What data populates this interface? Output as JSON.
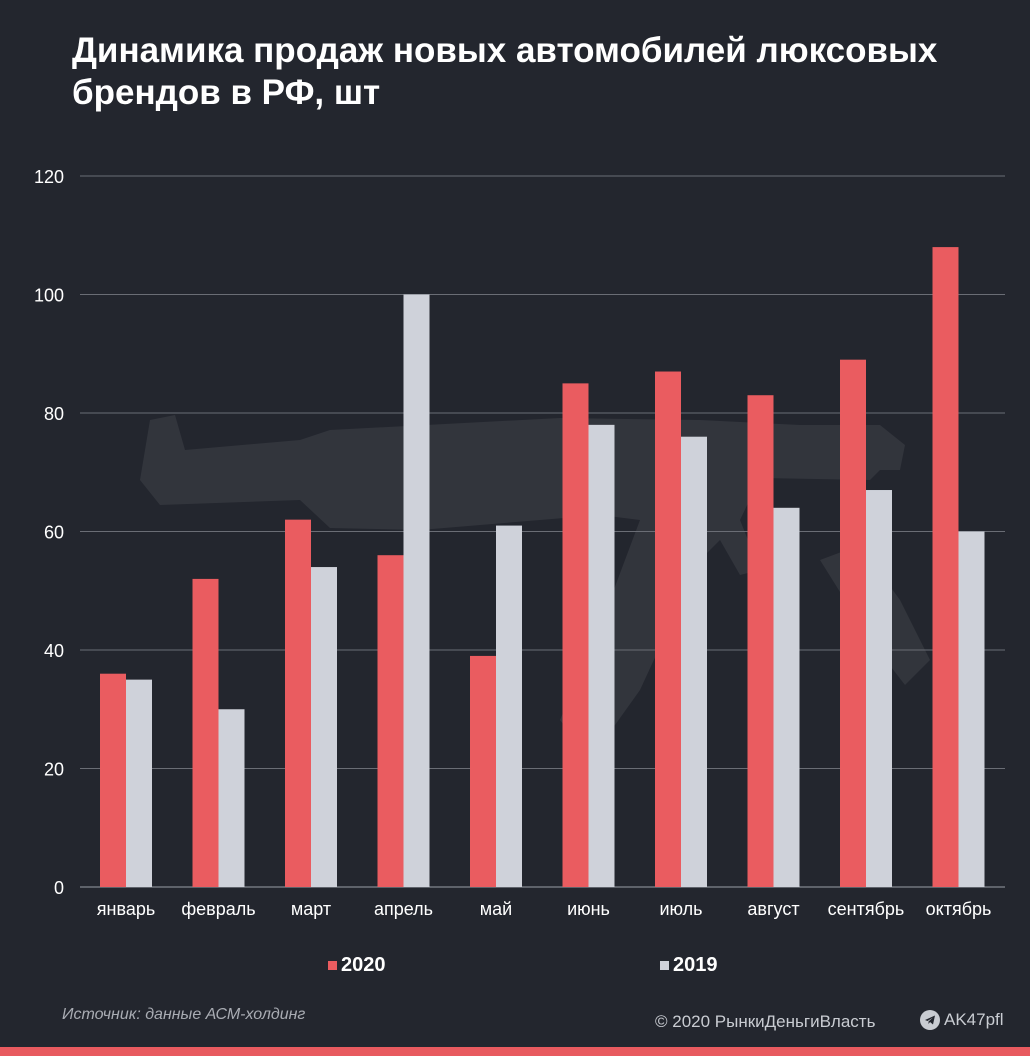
{
  "title": "Динамика продаж новых автомобилей люксовых брендов в РФ, шт",
  "colors": {
    "background": "#23262e",
    "series_2020": "#ea5c60",
    "series_2019": "#cfd2da",
    "grid": "#6a6d75",
    "accent_bar": "#e85a5f"
  },
  "chart_data": {
    "type": "bar",
    "title": "Динамика продаж новых автомобилей люксовых брендов в РФ, шт",
    "xlabel": "",
    "ylabel": "",
    "ylim": [
      0,
      120
    ],
    "yticks": [
      0,
      20,
      40,
      60,
      80,
      100,
      120
    ],
    "grid": true,
    "legend_position": "bottom",
    "categories": [
      "январь",
      "февраль",
      "март",
      "апрель",
      "май",
      "июнь",
      "июль",
      "август",
      "сентябрь",
      "октябрь"
    ],
    "series": [
      {
        "name": "2020",
        "values": [
          36,
          52,
          62,
          56,
          39,
          85,
          87,
          83,
          89,
          108
        ]
      },
      {
        "name": "2019",
        "values": [
          35,
          30,
          54,
          100,
          61,
          78,
          76,
          64,
          67,
          60
        ]
      }
    ]
  },
  "legend": [
    {
      "label": "2020"
    },
    {
      "label": "2019"
    }
  ],
  "footer": {
    "source": "Источник: данные АСМ-холдинг",
    "copyright": "© 2020 РынкиДеньгиВласть",
    "brand": "AK47pfl",
    "brand_icon": "telegram-icon"
  }
}
